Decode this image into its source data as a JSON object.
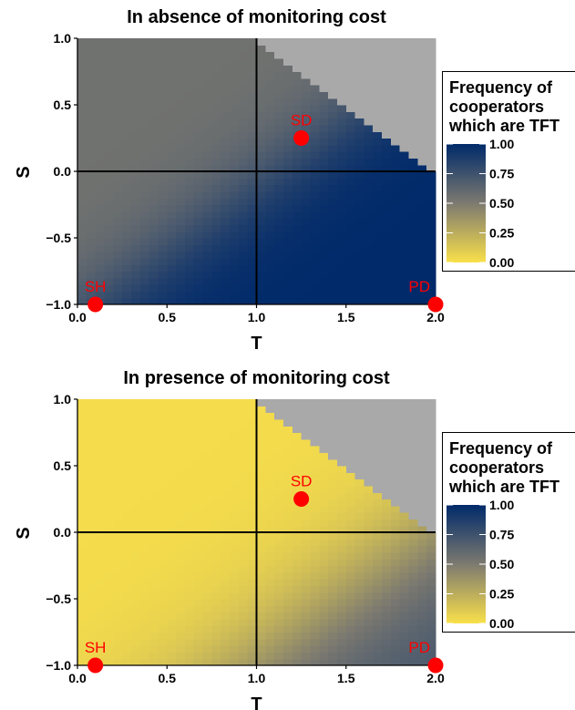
{
  "chart_data": [
    {
      "type": "heatmap",
      "title": "In absence of monitoring cost",
      "xlabel": "T",
      "ylabel": "S",
      "xlim": [
        0,
        2
      ],
      "ylim": [
        -1,
        1
      ],
      "x_ticks": [
        "0.0",
        "0.5",
        "1.0",
        "1.5",
        "2.0"
      ],
      "y_ticks": [
        "-1.0",
        "-0.5",
        "0.0",
        "0.5",
        "1.0"
      ],
      "points": [
        {
          "label": "SD",
          "x": 1.25,
          "y": 0.25
        },
        {
          "label": "SH",
          "x": 0.1,
          "y": -1.0
        },
        {
          "label": "PD",
          "x": 2.0,
          "y": -1.0
        }
      ],
      "legend": {
        "title_lines": [
          "Frequency of",
          "cooperators",
          "which are TFT"
        ],
        "ticks": [
          "1.00",
          "0.75",
          "0.50",
          "0.25",
          "0.00"
        ],
        "low_color": "#f9e04a",
        "mid_color": "#7d7a70",
        "high_color": "#002a6a",
        "placement": "right"
      },
      "na_color": "#a9a9a9",
      "model": "upper-left gray (~0.55), lower-right blue (~1.0), gradient along S-T diagonal; region S > 2 - T undefined (gray)"
    },
    {
      "type": "heatmap",
      "title": "In presence of monitoring cost",
      "xlabel": "T",
      "ylabel": "S",
      "xlim": [
        0,
        2
      ],
      "ylim": [
        -1,
        1
      ],
      "x_ticks": [
        "0.0",
        "0.5",
        "1.0",
        "1.5",
        "2.0"
      ],
      "y_ticks": [
        "-1.0",
        "-0.5",
        "0.0",
        "0.5",
        "1.0"
      ],
      "points": [
        {
          "label": "SD",
          "x": 1.25,
          "y": 0.25
        },
        {
          "label": "SH",
          "x": 0.1,
          "y": -1.0
        },
        {
          "label": "PD",
          "x": 2.0,
          "y": -1.0
        }
      ],
      "legend": {
        "title_lines": [
          "Frequency of",
          "cooperators",
          "which are TFT"
        ],
        "ticks": [
          "1.00",
          "0.75",
          "0.50",
          "0.25",
          "0.00"
        ],
        "low_color": "#f9e04a",
        "mid_color": "#7d7a70",
        "high_color": "#002a6a",
        "placement": "right"
      },
      "na_color": "#a9a9a9",
      "model": "upper-left yellow (~0.02), lower-right gray-blue (~0.7); region S > 2 - T undefined (gray)"
    }
  ]
}
